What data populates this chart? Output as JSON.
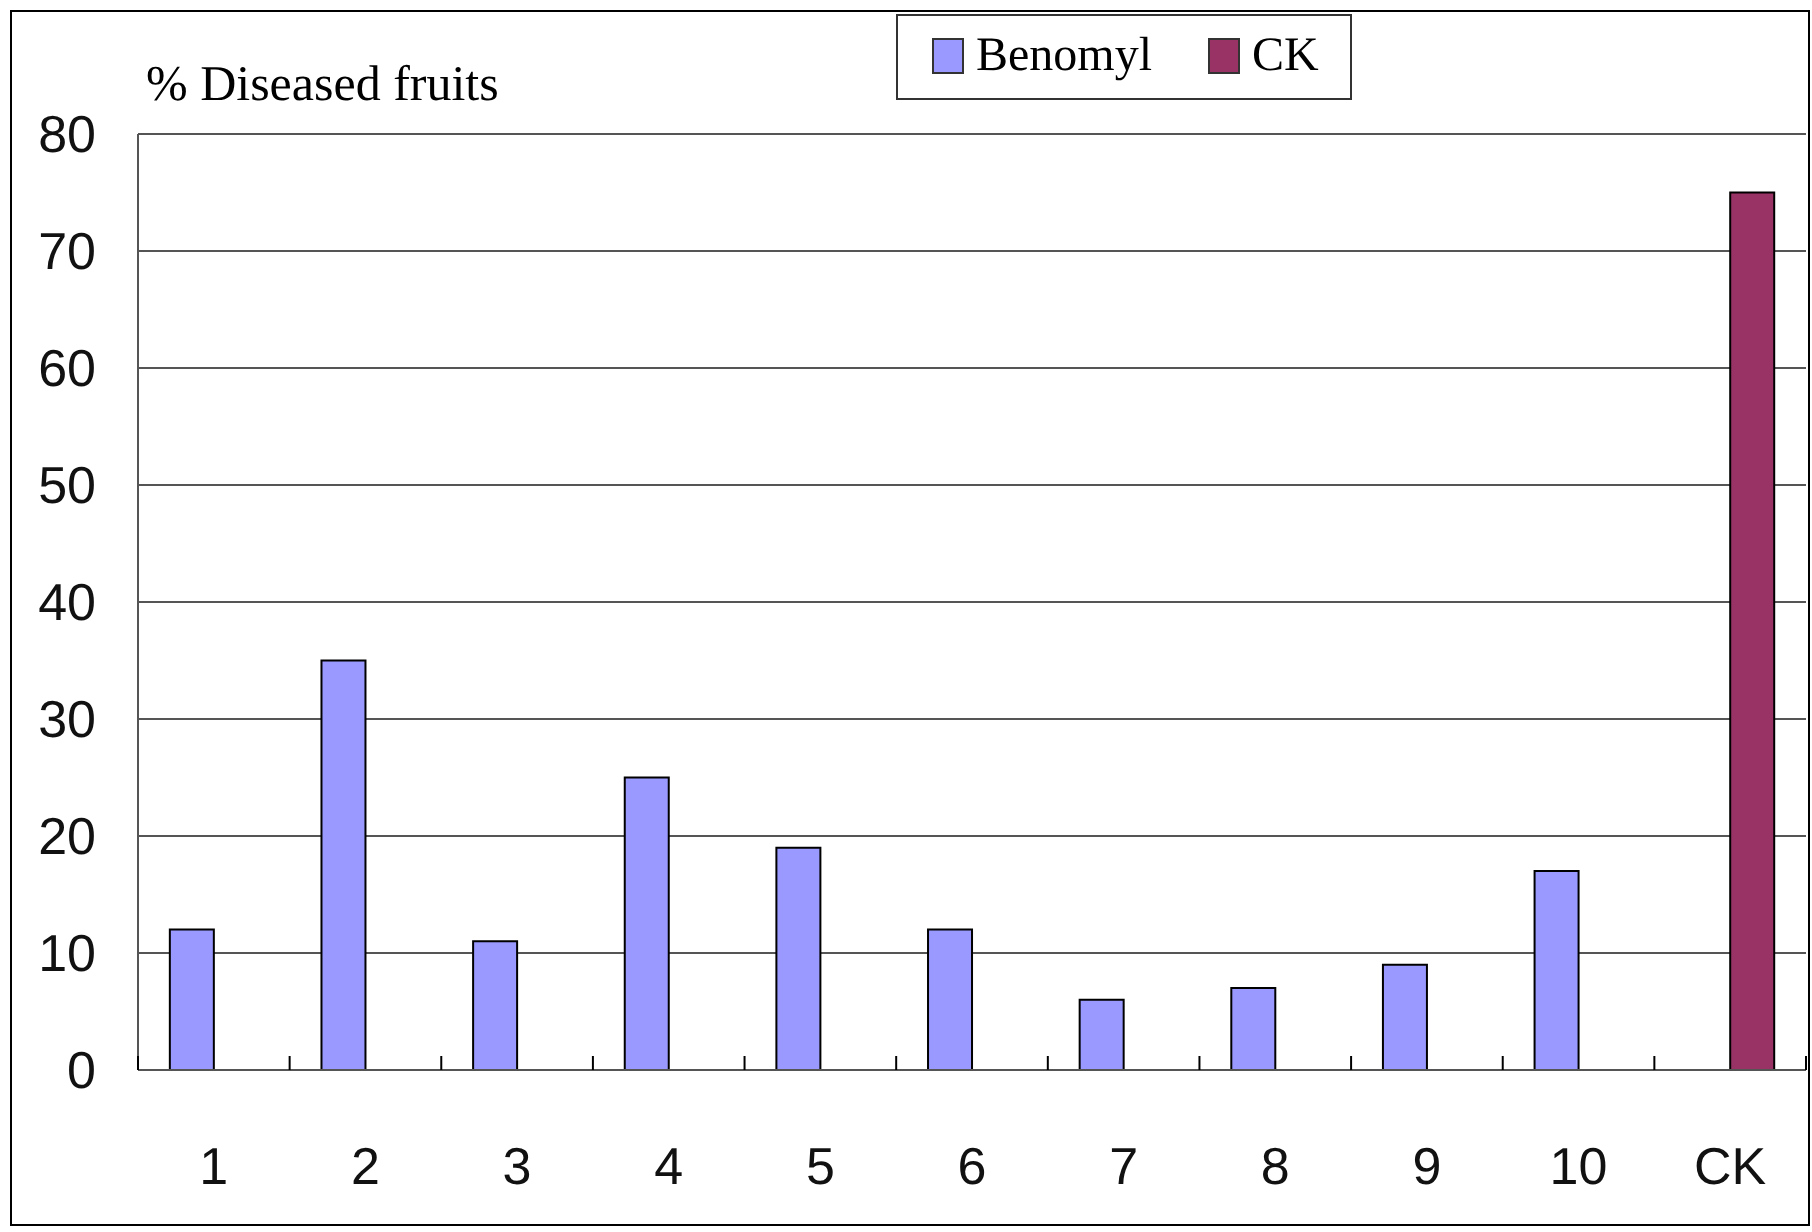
{
  "chart_data": {
    "type": "bar",
    "ylabel": "% Diseased fruits",
    "categories": [
      "1",
      "2",
      "3",
      "4",
      "5",
      "6",
      "7",
      "8",
      "9",
      "10",
      "CK"
    ],
    "series": [
      {
        "name": "Benomyl",
        "color": "#9999ff",
        "values": [
          12,
          35,
          11,
          25,
          19,
          12,
          6,
          7,
          9,
          17,
          null
        ]
      },
      {
        "name": "CK",
        "color": "#993366",
        "values": [
          null,
          null,
          null,
          null,
          null,
          null,
          null,
          null,
          null,
          null,
          75
        ]
      }
    ],
    "ylim": [
      0,
      80
    ],
    "yticks": [
      0,
      10,
      20,
      30,
      40,
      50,
      60,
      70,
      80
    ],
    "grid": "y",
    "legend": "top"
  }
}
